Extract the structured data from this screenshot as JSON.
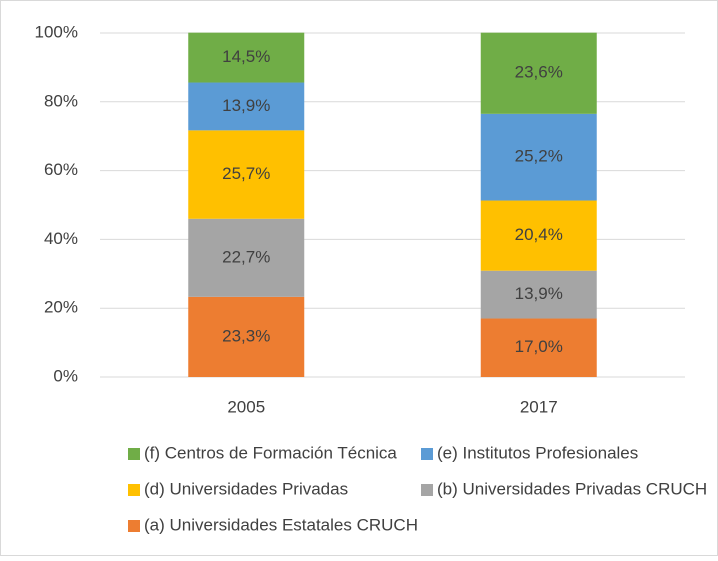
{
  "chart_data": {
    "type": "stacked_bar",
    "categories": [
      "2005",
      "2017"
    ],
    "series": [
      {
        "name": "(a) Universidades Estatales CRUCH",
        "color": "#ED7D31",
        "values": [
          23.3,
          17.0
        ],
        "value_labels": [
          "23,3%",
          "17,0%"
        ]
      },
      {
        "name": "(b) Universidades Privadas CRUCH",
        "color": "#A5A5A5",
        "values": [
          22.7,
          13.9
        ],
        "value_labels": [
          "22,7%",
          "13,9%"
        ]
      },
      {
        "name": "(d) Universidades Privadas",
        "color": "#FFC000",
        "values": [
          25.7,
          20.4
        ],
        "value_labels": [
          "25,7%",
          "20,4%"
        ]
      },
      {
        "name": "(e) Institutos Profesionales",
        "color": "#5B9BD5",
        "values": [
          13.9,
          25.2
        ],
        "value_labels": [
          "13,9%",
          "25,2%"
        ]
      },
      {
        "name": "(f) Centros de Formación Técnica",
        "color": "#70AD47",
        "values": [
          14.5,
          23.6
        ],
        "value_labels": [
          "14,5%",
          "23,6%"
        ]
      }
    ],
    "ylim": [
      0,
      100
    ],
    "yticks": [
      {
        "value": 0,
        "label": "0%"
      },
      {
        "value": 20,
        "label": "20%"
      },
      {
        "value": 40,
        "label": "40%"
      },
      {
        "value": 60,
        "label": "60%"
      },
      {
        "value": 80,
        "label": "80%"
      },
      {
        "value": 100,
        "label": "100%"
      }
    ],
    "grid": true
  }
}
